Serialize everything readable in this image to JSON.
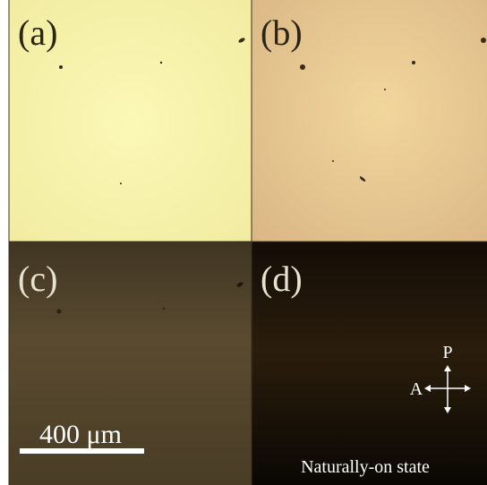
{
  "panels": [
    {
      "label": "(a)"
    },
    {
      "label": "(b)"
    },
    {
      "label": "(c)"
    },
    {
      "label": "(d)"
    }
  ],
  "scale_bar": {
    "label": "400 μm"
  },
  "polarizer": {
    "p": "P",
    "a": "A"
  },
  "caption": "Naturally-on state"
}
